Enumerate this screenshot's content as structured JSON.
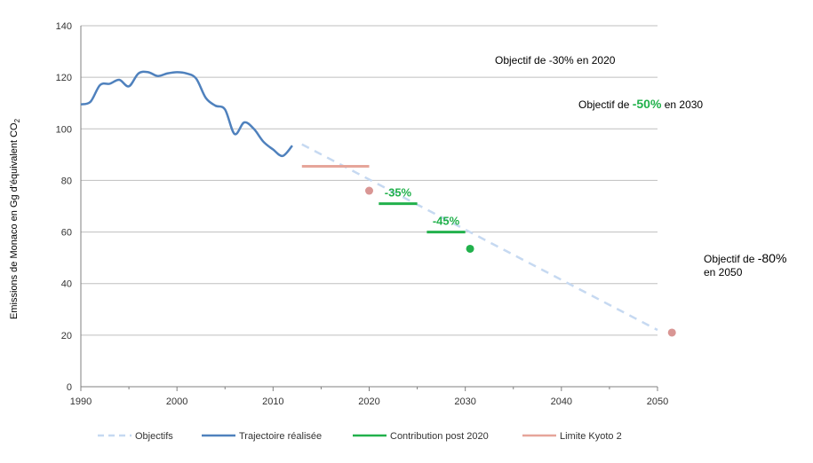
{
  "chart_data": {
    "type": "line",
    "ylabel": "Emissions de Monaco en Gg d'équivalent CO",
    "ylabel_subscript": "2",
    "xlabel": "",
    "xlim": [
      1990,
      2050
    ],
    "ylim": [
      0,
      140
    ],
    "x_ticks": [
      1990,
      2000,
      2010,
      2020,
      2030,
      2040,
      2050
    ],
    "y_ticks": [
      0,
      20,
      40,
      60,
      80,
      100,
      120,
      140
    ],
    "grid": "horizontal",
    "legend_position": "bottom",
    "series": [
      {
        "name": "Objectifs",
        "style": "dashed",
        "color": "#c6d9f1",
        "x": [
          2013,
          2050
        ],
        "y": [
          94,
          22
        ]
      },
      {
        "name": "Trajectoire réalisée",
        "style": "solid",
        "color": "#4f81bd",
        "x": [
          1990,
          1991,
          1992,
          1993,
          1994,
          1995,
          1996,
          1997,
          1998,
          1999,
          2000,
          2001,
          2002,
          2003,
          2004,
          2005,
          2006,
          2007,
          2008,
          2009,
          2010,
          2011,
          2012
        ],
        "y": [
          109.5,
          110.5,
          117,
          117.5,
          119,
          116.5,
          121.5,
          122,
          120.5,
          121.5,
          122,
          121.5,
          119.5,
          112,
          109,
          107.5,
          98,
          102.5,
          100,
          95,
          92,
          89.5,
          93.5
        ]
      },
      {
        "name": "Contribution post 2020",
        "style": "segments",
        "color": "#22b14c",
        "segments": [
          {
            "x": [
              2021,
              2025
            ],
            "y": 71,
            "label": "-35%"
          },
          {
            "x": [
              2026,
              2030
            ],
            "y": 60,
            "label": "-45%"
          }
        ]
      },
      {
        "name": "Limite Kyoto 2",
        "style": "segment",
        "color": "#e6a59a",
        "x": [
          2013,
          2020
        ],
        "y": 85.5
      }
    ],
    "markers": [
      {
        "x": 2020,
        "y": 76,
        "color": "#d99694"
      },
      {
        "x": 2030.5,
        "y": 53.5,
        "color": "#22b14c"
      },
      {
        "x": 2051.5,
        "y": 21,
        "color": "#d99694"
      }
    ],
    "annotations": {
      "obj2020": {
        "text": "Objectif de -30% en 2020"
      },
      "obj2030": {
        "prefix": "Objectif de ",
        "value": "-50%",
        "suffix": " en 2030",
        "value_color": "#22b14c"
      },
      "obj2050": {
        "prefix": "Objectif de ",
        "value": "-80%",
        "line2": "en 2050"
      }
    }
  }
}
